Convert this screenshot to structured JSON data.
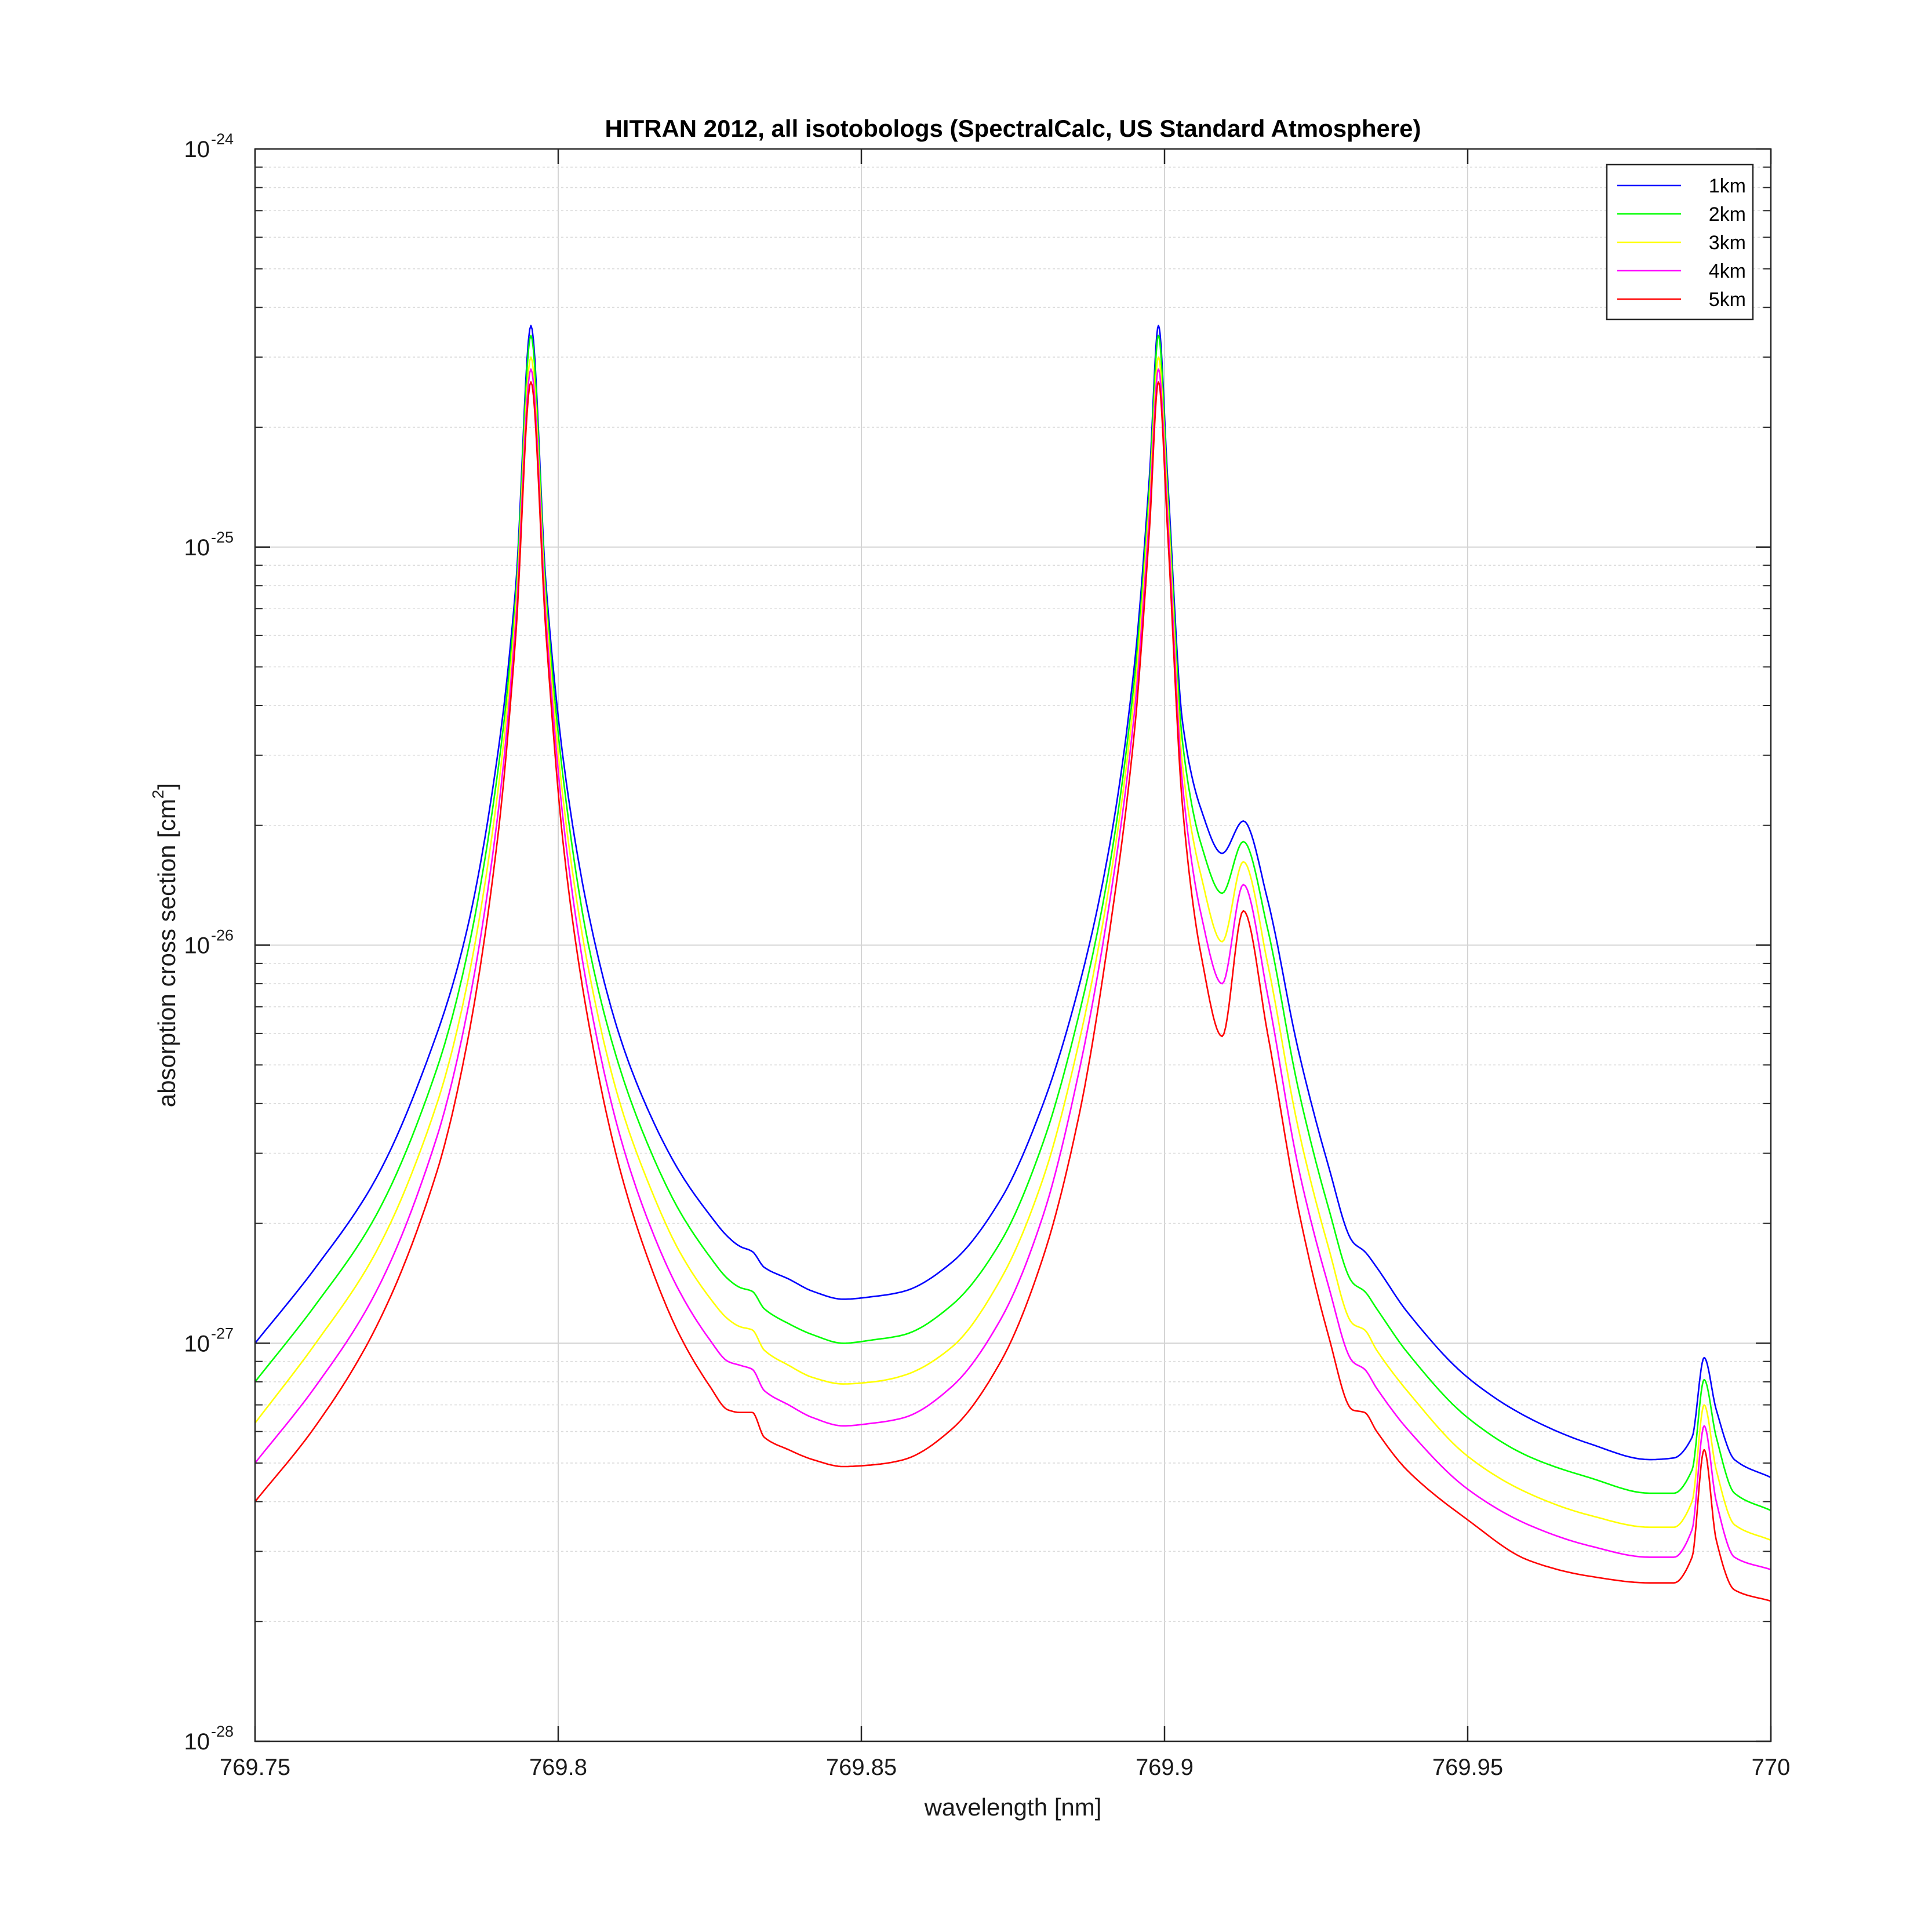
{
  "chart_data": {
    "type": "line",
    "title": "HITRAN 2012, all isotobologs (SpectralCalc, US Standard Atmosphere)",
    "xlabel": "wavelength [nm]",
    "ylabel_main": "absorption cross section [cm",
    "ylabel_sup": "2",
    "ylabel_end": "]",
    "xlim": [
      769.75,
      770
    ],
    "ylim": [
      1e-28,
      1e-24
    ],
    "yscale": "log",
    "grid": true,
    "legend_position": "top-right",
    "x_ticks": [
      {
        "value": 769.75,
        "label": "769.75"
      },
      {
        "value": 769.8,
        "label": "769.8"
      },
      {
        "value": 769.85,
        "label": "769.85"
      },
      {
        "value": 769.9,
        "label": "769.9"
      },
      {
        "value": 769.95,
        "label": "769.95"
      },
      {
        "value": 770,
        "label": "770"
      }
    ],
    "y_ticks": [
      {
        "exp": -24,
        "base": "10",
        "sup": "-24"
      },
      {
        "exp": -25,
        "base": "10",
        "sup": "-25"
      },
      {
        "exp": -26,
        "base": "10",
        "sup": "-26"
      },
      {
        "exp": -27,
        "base": "10",
        "sup": "-27"
      },
      {
        "exp": -28,
        "base": "10",
        "sup": "-28"
      }
    ],
    "x": [
      769.75,
      769.76,
      769.77,
      769.78,
      769.785,
      769.79,
      769.793,
      769.7955,
      769.798,
      769.801,
      769.805,
      769.81,
      769.815,
      769.82,
      769.825,
      769.828,
      769.83,
      769.832,
      769.834,
      769.838,
      769.842,
      769.847,
      769.852,
      769.857,
      769.865,
      769.873,
      769.88,
      769.886,
      769.891,
      769.895,
      769.8975,
      769.899,
      769.9005,
      769.903,
      769.906,
      769.9095,
      769.913,
      769.917,
      769.922,
      769.927,
      769.931,
      769.933,
      769.935,
      769.94,
      769.95,
      769.96,
      769.97,
      769.98,
      769.984,
      769.987,
      769.989,
      769.991,
      769.994,
      770.0
    ],
    "series": [
      {
        "name": "1km",
        "color": "#0000ff",
        "values": [
          1e-27,
          1.55e-27,
          2.6e-27,
          6e-27,
          1.1e-26,
          3e-26,
          8e-26,
          3.6e-25,
          8e-26,
          2.8e-26,
          1.2e-26,
          6e-27,
          3.8e-27,
          2.7e-27,
          2.1e-27,
          1.85e-27,
          1.75e-27,
          1.7e-27,
          1.55e-27,
          1.45e-27,
          1.35e-27,
          1.29e-27,
          1.31e-27,
          1.35e-27,
          1.6e-27,
          2.3e-27,
          4e-27,
          8e-27,
          1.8e-26,
          5e-26,
          1.5e-25,
          3.6e-25,
          1.5e-25,
          3.6e-26,
          2.2e-26,
          1.7e-26,
          2.05e-26,
          1.3e-26,
          5.5e-27,
          2.8e-27,
          1.8e-27,
          1.7e-27,
          1.55e-27,
          1.2e-27,
          8.2e-28,
          6.5e-28,
          5.6e-28,
          5.1e-28,
          5.15e-28,
          5.8e-28,
          9.2e-28,
          6.8e-28,
          5.1e-28,
          4.6e-28
        ]
      },
      {
        "name": "2km",
        "color": "#00ff00",
        "values": [
          8e-28,
          1.25e-27,
          2.1e-27,
          4.9e-27,
          9.5e-27,
          2.7e-26,
          7.5e-26,
          3.4e-25,
          7.5e-26,
          2.5e-26,
          1e-26,
          5e-27,
          3.1e-27,
          2.15e-27,
          1.65e-27,
          1.45e-27,
          1.38e-27,
          1.35e-27,
          1.22e-27,
          1.12e-27,
          1.05e-27,
          1e-27,
          1.02e-27,
          1.05e-27,
          1.25e-27,
          1.8e-27,
          3.2e-27,
          6.8e-27,
          1.6e-26,
          4.6e-26,
          1.4e-25,
          3.4e-25,
          1.4e-25,
          3.2e-26,
          1.8e-26,
          1.35e-26,
          1.82e-26,
          1.1e-26,
          4.4e-27,
          2.2e-27,
          1.42e-27,
          1.35e-27,
          1.22e-27,
          9.5e-28,
          6.5e-28,
          5.2e-28,
          4.6e-28,
          4.2e-28,
          4.2e-28,
          4.8e-28,
          8.1e-28,
          5.8e-28,
          4.2e-28,
          3.8e-28
        ]
      },
      {
        "name": "3km",
        "color": "#ffff00",
        "values": [
          6.3e-28,
          1e-27,
          1.7e-27,
          4e-27,
          8e-27,
          2.4e-26,
          7e-26,
          3e-25,
          7e-26,
          2.2e-26,
          8.7e-27,
          4.1e-27,
          2.5e-27,
          1.7e-27,
          1.3e-27,
          1.15e-27,
          1.1e-27,
          1.08e-27,
          9.6e-28,
          8.8e-28,
          8.2e-28,
          7.9e-28,
          8e-28,
          8.3e-28,
          9.8e-28,
          1.45e-27,
          2.6e-27,
          5.8e-27,
          1.45e-26,
          4.2e-26,
          1.3e-25,
          3e-25,
          1.3e-25,
          2.8e-26,
          1.5e-26,
          1.02e-26,
          1.62e-26,
          9e-27,
          3.5e-27,
          1.75e-27,
          1.12e-27,
          1.08e-27,
          9.6e-28,
          7.6e-28,
          5.2e-28,
          4.2e-28,
          3.7e-28,
          3.45e-28,
          3.45e-28,
          4e-28,
          7e-28,
          4.8e-28,
          3.5e-28,
          3.2e-28
        ]
      },
      {
        "name": "4km",
        "color": "#ff00ff",
        "values": [
          5e-28,
          7.8e-28,
          1.35e-27,
          3.3e-27,
          6.8e-27,
          2.1e-26,
          6.5e-26,
          2.8e-25,
          6.5e-26,
          1.95e-26,
          7.5e-27,
          3.4e-27,
          2e-27,
          1.35e-27,
          1.02e-27,
          9e-28,
          8.8e-28,
          8.6e-28,
          7.6e-28,
          7e-28,
          6.5e-28,
          6.2e-28,
          6.3e-28,
          6.5e-28,
          7.8e-28,
          1.15e-27,
          2.1e-27,
          4.9e-27,
          1.3e-26,
          3.8e-26,
          1.2e-25,
          2.8e-25,
          1.2e-25,
          2.5e-26,
          1.2e-26,
          8e-27,
          1.42e-26,
          7.5e-27,
          2.8e-27,
          1.4e-27,
          9e-28,
          8.6e-28,
          7.7e-28,
          6.1e-28,
          4.3e-28,
          3.5e-28,
          3.1e-28,
          2.9e-28,
          2.9e-28,
          3.4e-28,
          6.2e-28,
          4e-28,
          2.9e-28,
          2.7e-28
        ]
      },
      {
        "name": "5km",
        "color": "#ff0000",
        "values": [
          4e-28,
          6.2e-28,
          1.1e-27,
          2.7e-27,
          5.7e-27,
          1.85e-26,
          6e-26,
          2.6e-25,
          6e-26,
          1.7e-26,
          6.4e-27,
          2.8e-27,
          1.6e-27,
          1.05e-27,
          7.8e-28,
          6.8e-28,
          6.7e-28,
          6.7e-28,
          5.8e-28,
          5.4e-28,
          5.1e-28,
          4.9e-28,
          4.95e-28,
          5.1e-28,
          6.1e-28,
          9e-28,
          1.65e-27,
          3.8e-27,
          1.1e-26,
          3.4e-26,
          1.1e-25,
          2.6e-25,
          1.1e-25,
          2.2e-26,
          9.5e-27,
          5.9e-27,
          1.22e-26,
          6e-27,
          2.2e-27,
          1.05e-27,
          6.8e-28,
          6.7e-28,
          6e-28,
          4.8e-28,
          3.6e-28,
          2.85e-28,
          2.6e-28,
          2.5e-28,
          2.5e-28,
          2.9e-28,
          5.4e-28,
          3.2e-28,
          2.4e-28,
          2.25e-28
        ]
      }
    ]
  }
}
